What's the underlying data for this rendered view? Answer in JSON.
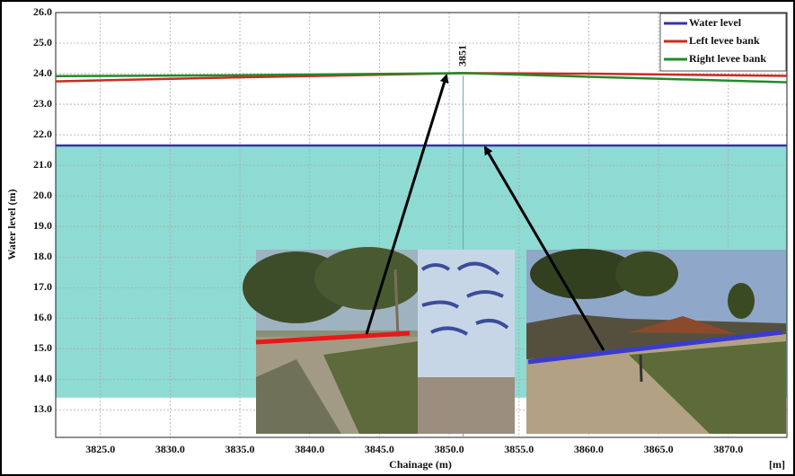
{
  "chart_data": {
    "type": "line",
    "x_label": "Chainage (m)",
    "y_label": "Water level (m)",
    "x_unit_label": "[m]",
    "x": [
      3821.8,
      3835,
      3851,
      3860,
      3874.2
    ],
    "series": [
      {
        "name": "Water level",
        "color": "#3434a8",
        "values": [
          21.65,
          21.65,
          21.65,
          21.65,
          21.65
        ],
        "fill_color": "#8edbd3",
        "fill_base": 13.4
      },
      {
        "name": "Left levee bank",
        "color": "#cc2a22",
        "values": [
          23.75,
          23.88,
          24.02,
          24.0,
          23.93
        ]
      },
      {
        "name": "Right levee bank",
        "color": "#238a2a",
        "values": [
          23.92,
          23.95,
          24.02,
          23.9,
          23.72
        ]
      }
    ],
    "marker_x": 3851,
    "xlim": [
      3821.8,
      3874.2
    ],
    "xticks": [
      {
        "value": 3825,
        "label": "3825.0"
      },
      {
        "value": 3830,
        "label": "3830.0"
      },
      {
        "value": 3835,
        "label": "3835.0"
      },
      {
        "value": 3840,
        "label": "3840.0"
      },
      {
        "value": 3845,
        "label": "3845.0"
      },
      {
        "value": 3850,
        "label": "3850.0"
      },
      {
        "value": 3855,
        "label": "3855.0"
      },
      {
        "value": 3860,
        "label": "3860.0"
      },
      {
        "value": 3865,
        "label": "3865.0"
      },
      {
        "value": 3870,
        "label": "3870.0"
      }
    ],
    "ylim": [
      12.1,
      26.0
    ],
    "yticks": [
      {
        "value": 13,
        "label": "13.0"
      },
      {
        "value": 14,
        "label": "14.0"
      },
      {
        "value": 15,
        "label": "15.0"
      },
      {
        "value": 16,
        "label": "16.0"
      },
      {
        "value": 17,
        "label": "17.0"
      },
      {
        "value": 18,
        "label": "18.0"
      },
      {
        "value": 19,
        "label": "19.0"
      },
      {
        "value": 20,
        "label": "20.0"
      },
      {
        "value": 21,
        "label": "21.0"
      },
      {
        "value": 22,
        "label": "22.0"
      },
      {
        "value": 23,
        "label": "23.0"
      },
      {
        "value": 24,
        "label": "24.0"
      },
      {
        "value": 25,
        "label": "25.0"
      },
      {
        "value": 26,
        "label": "26.0"
      }
    ],
    "grid": true,
    "legend": "top-right"
  }
}
